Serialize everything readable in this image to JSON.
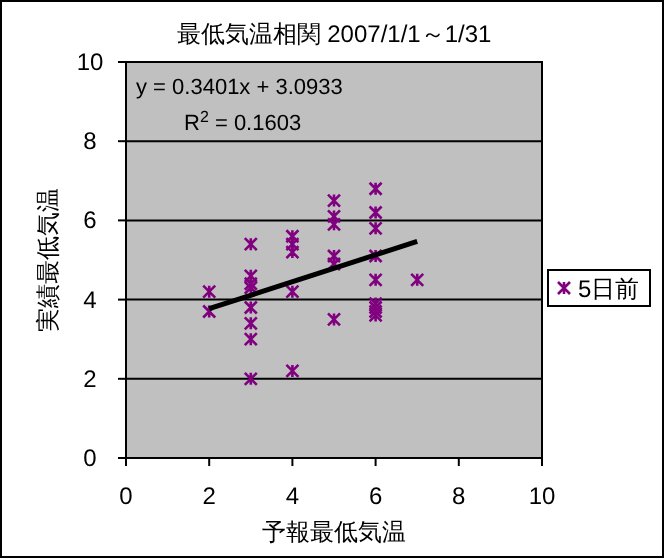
{
  "chart_data": {
    "type": "scatter",
    "title": "最低気温相関  2007/1/1～1/31",
    "xlabel": "予報最低気温",
    "ylabel": "実績最低気温",
    "annotations": [
      "y = 0.3401x + 3.0933",
      "R$^{2}$ = 0.1603"
    ],
    "xlim": [
      0,
      10
    ],
    "ylim": [
      0,
      10
    ],
    "xticks": [
      0,
      2,
      4,
      6,
      8,
      10
    ],
    "yticks": [
      0,
      2,
      4,
      6,
      8,
      10
    ],
    "grid": "y",
    "legend": "right",
    "marker": "cross",
    "series": [
      {
        "name": "5日前",
        "color": "#800080",
        "x": [
          2,
          2,
          3,
          3,
          3,
          3,
          3,
          3,
          3,
          3,
          4,
          4,
          4,
          4,
          4,
          5,
          5,
          5,
          5,
          5,
          5,
          6,
          6,
          6,
          6,
          6,
          6,
          6,
          6,
          6,
          7
        ],
        "values": [
          4.2,
          3.7,
          5.4,
          4.6,
          4.4,
          4.3,
          3.8,
          3.4,
          3.0,
          2.0,
          5.6,
          5.4,
          5.2,
          4.2,
          2.2,
          6.5,
          6.1,
          5.9,
          5.1,
          4.9,
          3.5,
          6.8,
          6.2,
          5.8,
          5.1,
          4.5,
          3.9,
          3.8,
          3.7,
          3.6,
          4.5
        ]
      },
      {
        "type": "line",
        "color": "#000000",
        "marker": "none",
        "x": [
          2,
          7
        ],
        "values": [
          3.77,
          5.47
        ]
      }
    ]
  }
}
